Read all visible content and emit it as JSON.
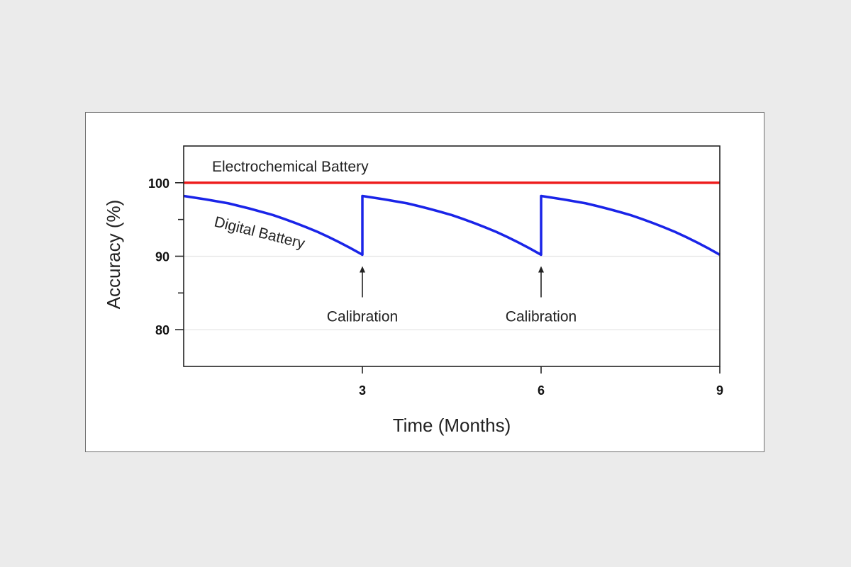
{
  "chart_data": {
    "type": "line",
    "xlabel": "Time (Months)",
    "ylabel": "Accuracy (%)",
    "xlim": [
      0,
      9
    ],
    "ylim": [
      75,
      105
    ],
    "x_ticks": [
      3,
      6,
      9
    ],
    "y_ticks": [
      80,
      90,
      100
    ],
    "gridlines": [
      80,
      90
    ],
    "colors": {
      "electrochemical": "#ee1c1c",
      "digital": "#1a24e8"
    },
    "series": [
      {
        "name": "Electrochemical Battery",
        "x": [
          0,
          9
        ],
        "y": [
          100,
          100
        ]
      },
      {
        "name": "Digital Battery",
        "x": [
          0,
          0.75,
          1.5,
          2.25,
          3,
          3,
          3.75,
          4.5,
          5.25,
          6,
          6,
          6.75,
          7.5,
          8.25,
          9
        ],
        "y": [
          98.2,
          97.2,
          95.6,
          93.3,
          90.2,
          98.2,
          97.2,
          95.6,
          93.3,
          90.2,
          98.2,
          97.2,
          95.6,
          93.3,
          90.2
        ]
      }
    ],
    "annotations": [
      {
        "text": "Calibration",
        "x": 3,
        "y": 90
      },
      {
        "text": "Calibration",
        "x": 6,
        "y": 90
      }
    ]
  }
}
